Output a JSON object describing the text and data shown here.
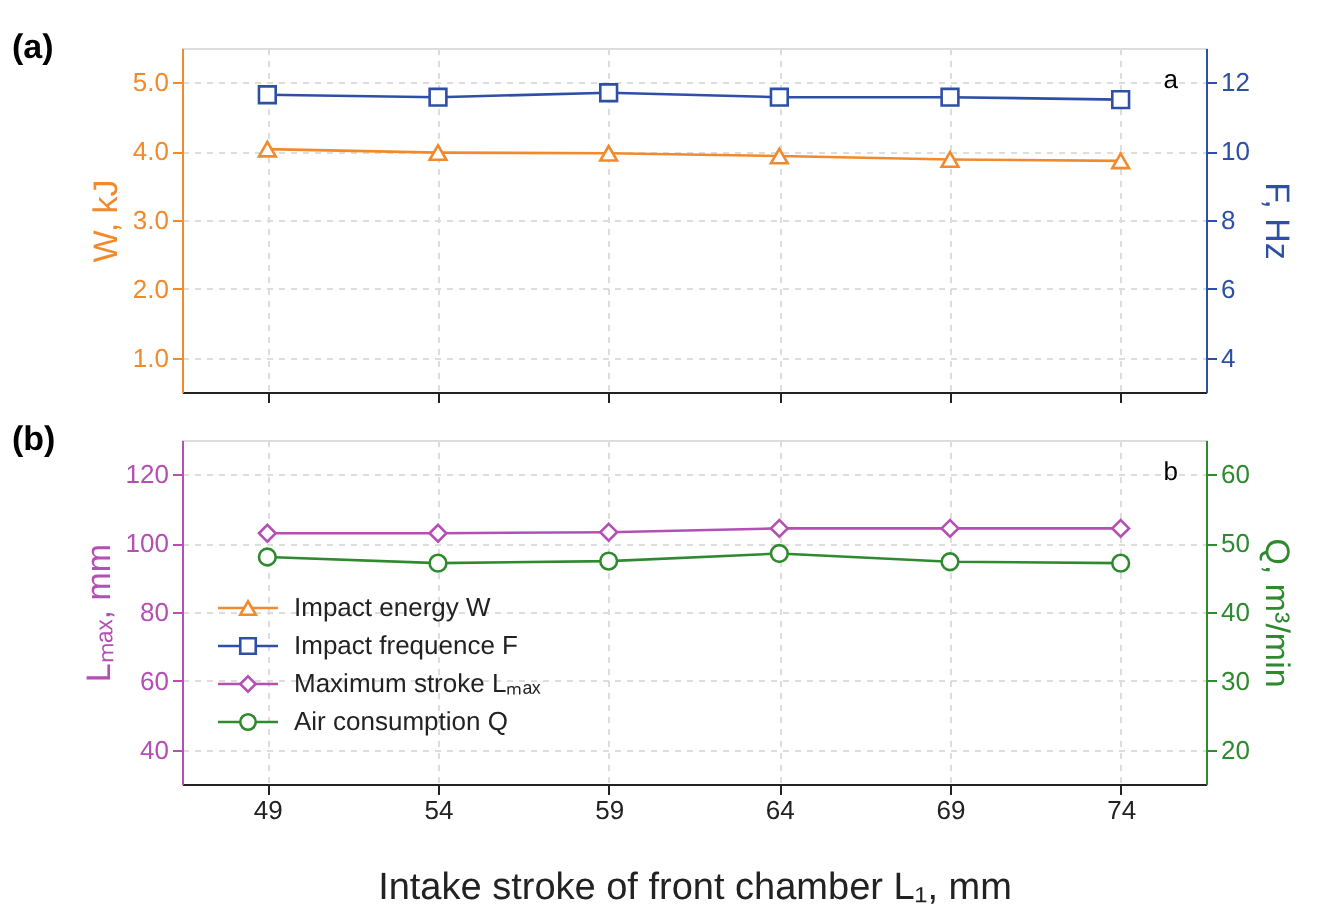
{
  "chart_data": [
    {
      "type": "line",
      "title": "(a)",
      "ylabel": "W, kJ",
      "y2label": "F, Hz",
      "annotations": [
        "a"
      ],
      "x": [
        49,
        54,
        59,
        64,
        69,
        74
      ],
      "xlim": [
        46.5,
        76.5
      ],
      "xticks": [
        49,
        54,
        59,
        64,
        69,
        74
      ],
      "ylim": [
        0.5,
        5.5
      ],
      "yticks": [
        {
          "value": 1,
          "label": "1.0"
        },
        {
          "value": 2,
          "label": "2.0"
        },
        {
          "value": 3,
          "label": "3.0"
        },
        {
          "value": 4,
          "label": "4.0"
        },
        {
          "value": 5,
          "label": "5.0"
        }
      ],
      "y2lim": [
        3,
        13
      ],
      "y2ticks": [
        4,
        6,
        8,
        10,
        12
      ],
      "series": [
        {
          "name": "Impact energy W",
          "color": "#f08a2c",
          "marker": "triangle",
          "values": [
            4.03,
            3.98,
            3.97,
            3.93,
            3.88,
            3.86
          ]
        },
        {
          "name": "Impact frequence F",
          "color": "#2e4fa6",
          "marker": "square",
          "axis": "y2",
          "values": [
            11.64,
            11.57,
            11.7,
            11.57,
            11.57,
            11.5
          ]
        }
      ],
      "grid": true,
      "legend": "bottom",
      "tick_labels": "y"
    },
    {
      "type": "line",
      "title": "(b)",
      "xlabel": "Intake stroke of front chamber L₁, mm",
      "ylabel": "Lₘₐₓ, mm",
      "y2label": "Q, m³/min",
      "annotations": [
        "b"
      ],
      "x": [
        49,
        54,
        59,
        64,
        69,
        74
      ],
      "xlim": [
        46.5,
        76.5
      ],
      "xticks": [
        49,
        54,
        59,
        64,
        69,
        74
      ],
      "ylim": [
        30,
        130
      ],
      "yticks": [
        40,
        60,
        80,
        100,
        120
      ],
      "y2lim": [
        15,
        65
      ],
      "y2ticks": [
        20,
        30,
        40,
        50,
        60
      ],
      "series": [
        {
          "name": "Maximum stroke Lₘₐₓ",
          "color": "#b44fb4",
          "marker": "diamond",
          "values": [
            102.9,
            102.9,
            103.2,
            104.3,
            104.3,
            104.3
          ]
        },
        {
          "name": "Air consumption Q",
          "color": "#2f8a2f",
          "marker": "circle",
          "axis": "y2",
          "values": [
            48.0,
            47.1,
            47.4,
            48.5,
            47.3,
            47.1
          ]
        }
      ],
      "grid": true,
      "legend": "bottom left"
    }
  ]
}
